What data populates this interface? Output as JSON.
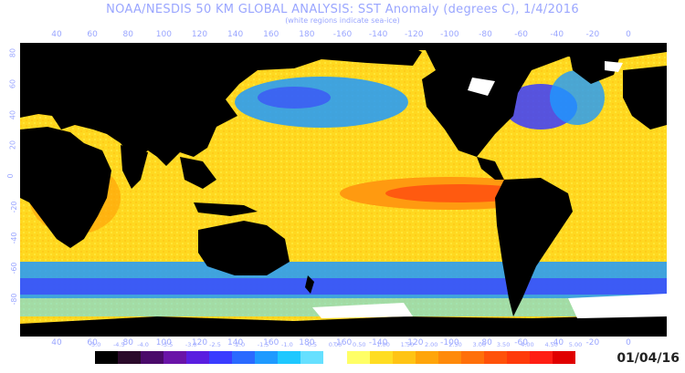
{
  "title": "NOAA/NESDIS 50 KM GLOBAL ANALYSIS: SST Anomaly (degrees C), 1/4/2016",
  "subtitle": "(white regions indicate sea-ice)",
  "date_label": "01/04/16",
  "lon_labels": [
    "40",
    "60",
    "80",
    "100",
    "120",
    "140",
    "160",
    "180",
    "-160",
    "-140",
    "-120",
    "-100",
    "-80",
    "-60",
    "-40",
    "-20",
    "0"
  ],
  "lat_labels": [
    "80",
    "60",
    "40",
    "20",
    "0",
    "-20",
    "-40",
    "-60",
    "-80"
  ],
  "scale": {
    "labels": [
      "-5.0",
      "-4.5",
      "-4.0",
      "-3.5",
      "-3.0",
      "-2.5",
      "-2.0",
      "-1.5",
      "-1.0",
      "-0.5",
      "0.00",
      "0.50",
      "1.00",
      "1.50",
      "2.00",
      "2.50",
      "3.00",
      "3.50",
      "4.00",
      "4.50",
      "5.00"
    ],
    "colors": [
      "#000000",
      "#2a0a2a",
      "#4a0a6a",
      "#6a14a8",
      "#5a1ee0",
      "#3a3cff",
      "#2a6aff",
      "#1e9aff",
      "#1ec8ff",
      "#66e0ff",
      "#ffffff",
      "#ffff66",
      "#ffdd22",
      "#ffc414",
      "#ffa50a",
      "#ff8a0a",
      "#ff700a",
      "#ff520a",
      "#ff3a0a",
      "#ff1e14",
      "#e00000"
    ]
  },
  "colors": {
    "land": "#000000",
    "ice": "#ffffff",
    "neutral_ocean": "#ffd820",
    "warm": "#ff9a10",
    "hot": "#ff5a10",
    "cool": "#1e9aff",
    "cold": "#3a3cff"
  }
}
